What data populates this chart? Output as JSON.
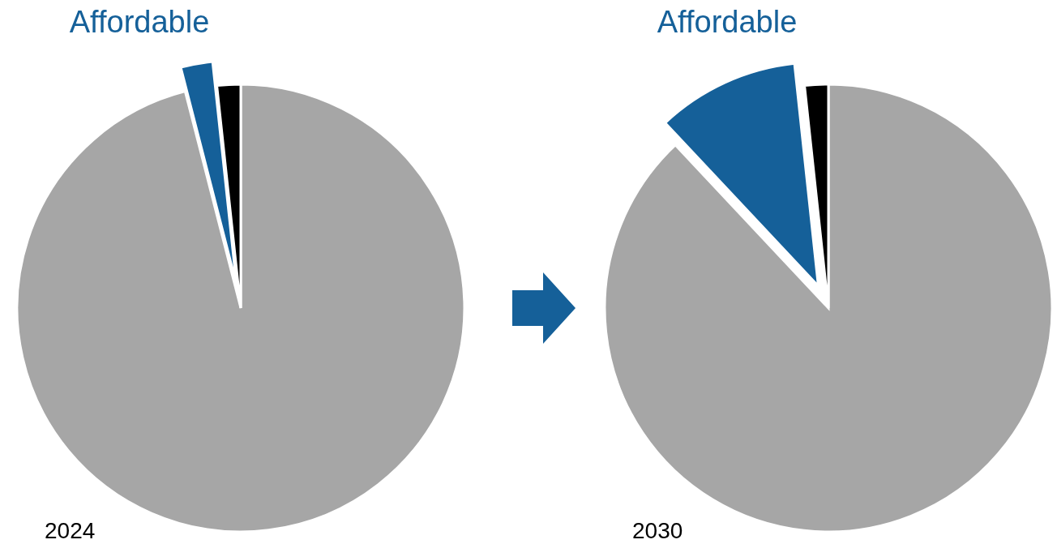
{
  "chart_data": [
    {
      "type": "pie",
      "title": "2024",
      "categories": [
        null,
        "Affordable",
        null
      ],
      "values": [
        96,
        2.3,
        1.7
      ],
      "colors": [
        "#a6a6a6",
        "#156099",
        "#000000"
      ]
    },
    {
      "type": "pie",
      "title": "2030",
      "categories": [
        null,
        "Affordable",
        null
      ],
      "values": [
        88,
        10.3,
        1.7
      ],
      "colors": [
        "#a6a6a6",
        "#156099",
        "#000000"
      ]
    }
  ]
}
